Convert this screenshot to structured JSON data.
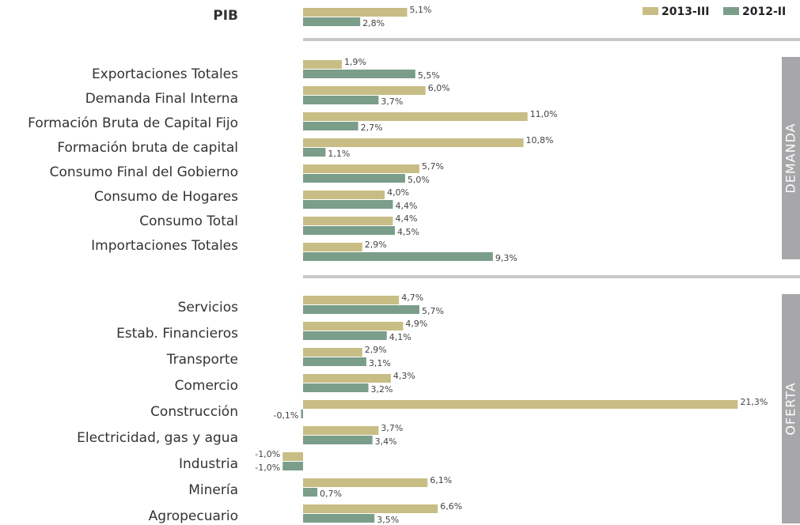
{
  "chart_data": [
    {
      "type": "bar",
      "orientation": "horizontal",
      "xlim": [
        -2,
        24
      ],
      "categories": [
        "PIB"
      ],
      "series": [
        {
          "name": "2013-III",
          "color": "#c8bd84",
          "values": [
            5.1
          ],
          "value_labels": [
            "5,1%"
          ]
        },
        {
          "name": "2012-II",
          "color": "#7a9e8a",
          "values": [
            2.8
          ],
          "value_labels": [
            "2,8%"
          ]
        }
      ]
    },
    {
      "type": "bar",
      "orientation": "horizontal",
      "xlim": [
        -2,
        24
      ],
      "section": "DEMANDA",
      "categories": [
        "Exportaciones Totales",
        "Demanda Final Interna",
        "Formación Bruta de Capital Fijo",
        "Formación bruta de capital",
        "Consumo Final del Gobierno",
        "Consumo de Hogares",
        "Consumo Total",
        "Importaciones Totales"
      ],
      "series": [
        {
          "name": "2013-III",
          "color": "#c8bd84",
          "values": [
            1.9,
            6.0,
            11.0,
            10.8,
            5.7,
            4.0,
            4.4,
            2.9
          ],
          "value_labels": [
            "1,9%",
            "6,0%",
            "11,0%",
            "10,8%",
            "5,7%",
            "4,0%",
            "4,4%",
            "2,9%"
          ]
        },
        {
          "name": "2012-II",
          "color": "#7a9e8a",
          "values": [
            5.5,
            3.7,
            2.7,
            1.1,
            5.0,
            4.4,
            4.5,
            9.3
          ],
          "value_labels": [
            "5,5%",
            "3,7%",
            "2,7%",
            "1,1%",
            "5,0%",
            "4,4%",
            "4,5%",
            "9,3%"
          ]
        }
      ]
    },
    {
      "type": "bar",
      "orientation": "horizontal",
      "xlim": [
        -2,
        24
      ],
      "section": "OFERTA",
      "categories": [
        "Servicios",
        "Estab. Financieros",
        "Transporte",
        "Comercio",
        "Construcción",
        "Electricidad, gas y agua",
        "Industria",
        "Minería",
        "Agropecuario"
      ],
      "series": [
        {
          "name": "2013-III",
          "color": "#c8bd84",
          "values": [
            4.7,
            4.9,
            2.9,
            4.3,
            21.3,
            3.7,
            -1.0,
            6.1,
            6.6
          ],
          "value_labels": [
            "4,7%",
            "4,9%",
            "2,9%",
            "4,3%",
            "21,3%",
            "3,7%",
            "-1,0%",
            "6,1%",
            "6,6%"
          ]
        },
        {
          "name": "2012-II",
          "color": "#7a9e8a",
          "values": [
            5.7,
            4.1,
            3.1,
            3.2,
            -0.1,
            3.4,
            -1.0,
            0.7,
            3.5
          ],
          "value_labels": [
            "5,7%",
            "4,1%",
            "3,1%",
            "3,2%",
            "-0,1%",
            "3,4%",
            "-1,0%",
            "0,7%",
            "3,5%"
          ]
        }
      ]
    }
  ]
}
